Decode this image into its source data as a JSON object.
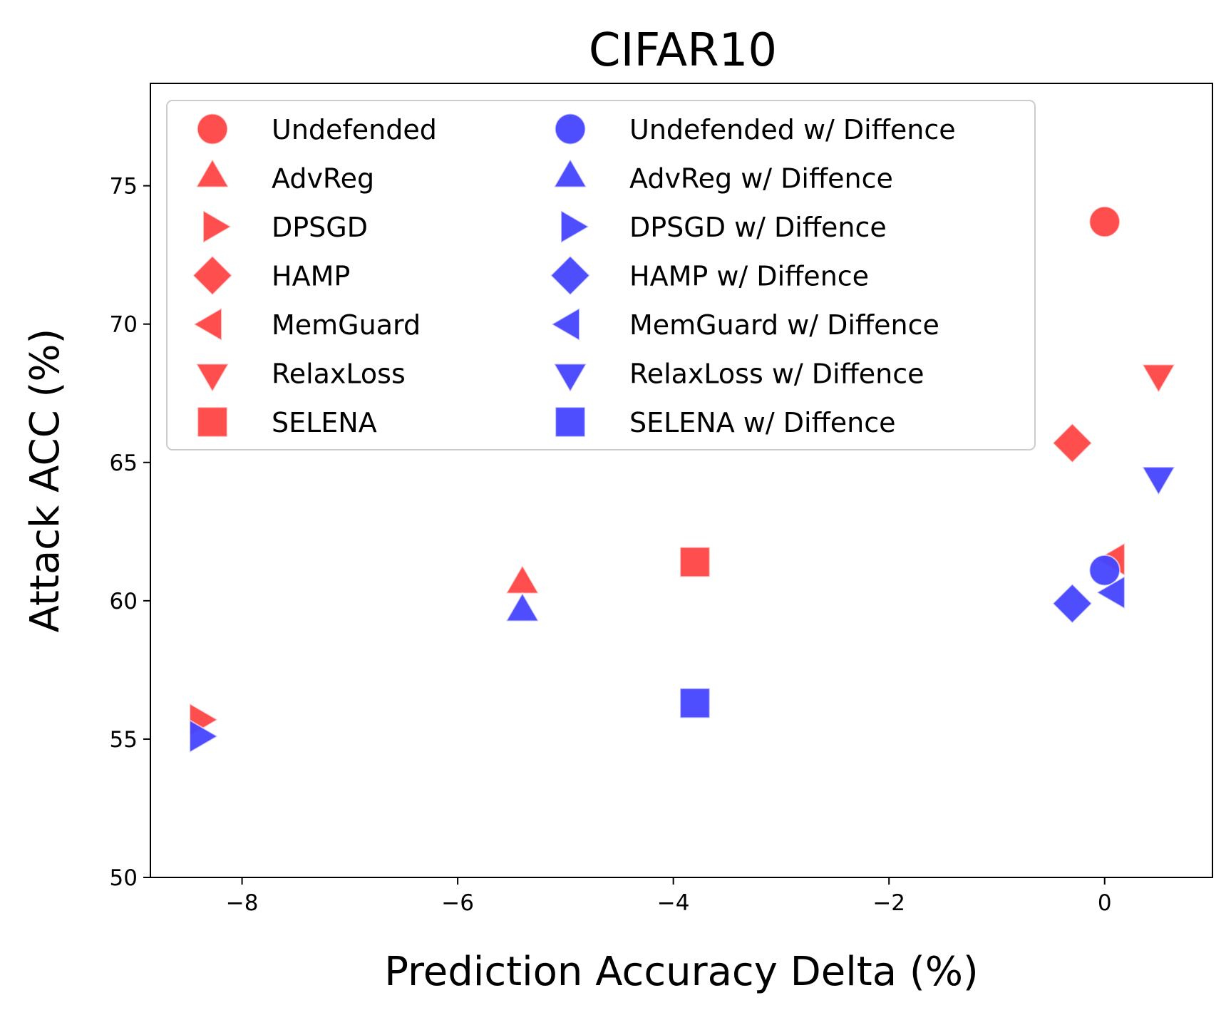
{
  "chart_data": {
    "type": "scatter",
    "title": "CIFAR10",
    "xlabel": "Prediction Accuracy Delta (%)",
    "ylabel": "Attack ACC (%)",
    "xlim": [
      -8.85,
      1.0
    ],
    "ylim": [
      50,
      78.7
    ],
    "xticks": [
      -8,
      -6,
      -4,
      -2,
      0
    ],
    "xtick_labels": [
      "−8",
      "−6",
      "−4",
      "−2",
      "0"
    ],
    "yticks": [
      50,
      55,
      60,
      65,
      70,
      75
    ],
    "ytick_labels": [
      "50",
      "55",
      "60",
      "65",
      "70",
      "75"
    ],
    "grid": false,
    "legend_location": "upper-left",
    "colors": {
      "undefended": "#ff4444",
      "with_diffence": "#4444ff"
    },
    "series": [
      {
        "name": "Undefended",
        "marker": "circle",
        "group": "undefended",
        "x": 0.0,
        "y": 73.7
      },
      {
        "name": "AdvReg",
        "marker": "triangle-up",
        "group": "undefended",
        "x": -5.4,
        "y": 60.6
      },
      {
        "name": "DPSGD",
        "marker": "triangle-right",
        "group": "undefended",
        "x": -8.4,
        "y": 55.7
      },
      {
        "name": "HAMP",
        "marker": "diamond",
        "group": "undefended",
        "x": -0.3,
        "y": 65.7
      },
      {
        "name": "MemGuard",
        "marker": "triangle-left",
        "group": "undefended",
        "x": 0.1,
        "y": 61.5
      },
      {
        "name": "RelaxLoss",
        "marker": "triangle-down",
        "group": "undefended",
        "x": 0.5,
        "y": 68.2
      },
      {
        "name": "SELENA",
        "marker": "square",
        "group": "undefended",
        "x": -3.8,
        "y": 61.4
      },
      {
        "name": "Undefended w/ Diffence",
        "marker": "circle",
        "group": "with_diffence",
        "x": 0.0,
        "y": 61.1
      },
      {
        "name": "AdvReg w/ Diffence",
        "marker": "triangle-up",
        "group": "with_diffence",
        "x": -5.4,
        "y": 59.6
      },
      {
        "name": "DPSGD w/ Diffence",
        "marker": "triangle-right",
        "group": "with_diffence",
        "x": -8.4,
        "y": 55.1
      },
      {
        "name": "HAMP w/ Diffence",
        "marker": "diamond",
        "group": "with_diffence",
        "x": -0.3,
        "y": 59.9
      },
      {
        "name": "MemGuard w/ Diffence",
        "marker": "triangle-left",
        "group": "with_diffence",
        "x": 0.1,
        "y": 60.3
      },
      {
        "name": "RelaxLoss w/ Diffence",
        "marker": "triangle-down",
        "group": "with_diffence",
        "x": 0.5,
        "y": 64.5
      },
      {
        "name": "SELENA w/ Diffence",
        "marker": "square",
        "group": "with_diffence",
        "x": -3.8,
        "y": 56.3
      }
    ]
  }
}
